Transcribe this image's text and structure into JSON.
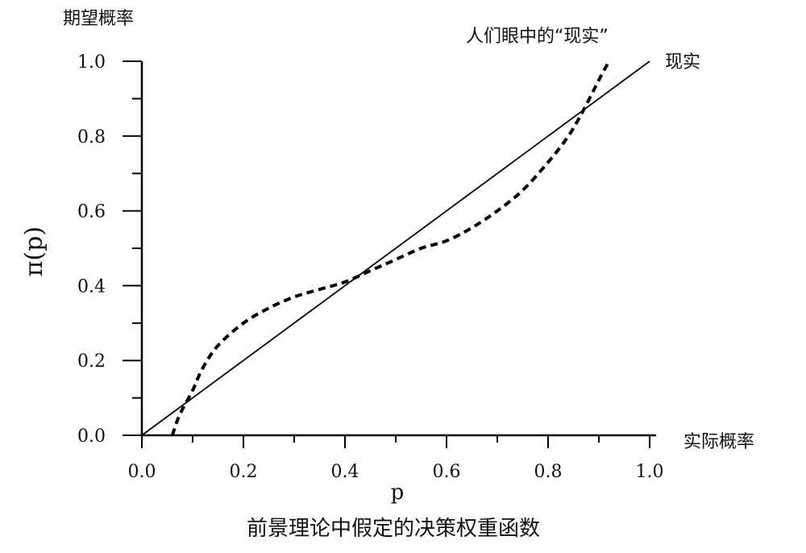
{
  "chart_data": {
    "type": "line",
    "title": "",
    "caption": "前景理论中假定的决策权重函数",
    "xlabel": "p",
    "ylabel": "π(p)",
    "xlim": [
      0,
      1
    ],
    "ylim": [
      0,
      1
    ],
    "x_ticks": [
      "0.0",
      "0.2",
      "0.4",
      "0.6",
      "0.8",
      "1.0"
    ],
    "y_ticks": [
      "0.0",
      "0.2",
      "0.4",
      "0.6",
      "0.8",
      "1.0"
    ],
    "x_ticks_values": [
      0,
      0.2,
      0.4,
      0.6,
      0.8,
      1.0
    ],
    "y_ticks_values": [
      0,
      0.2,
      0.4,
      0.6,
      0.8,
      1.0
    ],
    "x_minor_step": 0.1,
    "y_minor_step": 0.1,
    "grid": false,
    "x_axis_title": "实际概率",
    "y_axis_title": "期望概率",
    "series": [
      {
        "name": "现实",
        "style": "solid",
        "x": [
          0.0,
          1.0
        ],
        "y": [
          0.0,
          1.0
        ]
      },
      {
        "name": "人们眼中的“现实”",
        "style": "dashed",
        "x": [
          0.06,
          0.07,
          0.08,
          0.1,
          0.12,
          0.15,
          0.2,
          0.25,
          0.3,
          0.35,
          0.4,
          0.45,
          0.5,
          0.55,
          0.6,
          0.65,
          0.7,
          0.75,
          0.8,
          0.84,
          0.87,
          0.9,
          0.92
        ],
        "y": [
          0.0,
          0.04,
          0.07,
          0.12,
          0.18,
          0.24,
          0.3,
          0.34,
          0.37,
          0.39,
          0.41,
          0.44,
          0.47,
          0.5,
          0.52,
          0.555,
          0.6,
          0.655,
          0.73,
          0.8,
          0.87,
          0.95,
          1.0
        ]
      }
    ]
  },
  "colors": {
    "line": "#000000",
    "text": "#111111",
    "background": "#ffffff"
  }
}
